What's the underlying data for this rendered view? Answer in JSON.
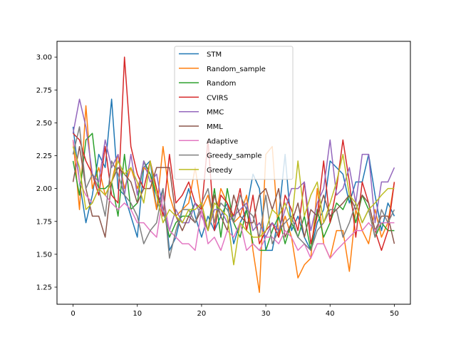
{
  "chart_data": {
    "type": "line",
    "title": "",
    "xlabel": "",
    "ylabel": "",
    "xlim": [
      -2.5,
      52.5
    ],
    "ylim": [
      1.12,
      3.12
    ],
    "xticks": [
      0,
      10,
      20,
      30,
      40,
      50
    ],
    "yticks": [
      1.25,
      1.5,
      1.75,
      2.0,
      2.25,
      2.5,
      2.75,
      3.0
    ],
    "ytick_labels": [
      "1.25",
      "1.50",
      "1.75",
      "2.00",
      "2.25",
      "2.50",
      "2.75",
      "3.00"
    ],
    "legend_position": "top-center",
    "grid": false,
    "x": [
      0,
      1,
      2,
      3,
      4,
      5,
      6,
      7,
      8,
      9,
      10,
      11,
      12,
      13,
      14,
      15,
      16,
      17,
      18,
      19,
      20,
      21,
      22,
      23,
      24,
      25,
      26,
      27,
      28,
      29,
      30,
      31,
      32,
      33,
      34,
      35,
      36,
      37,
      38,
      39,
      40,
      41,
      42,
      43,
      44,
      45,
      46,
      47,
      48,
      49,
      50
    ],
    "series": [
      {
        "name": "STM",
        "color": "#1f77b4",
        "values": [
          2.47,
          2.05,
          1.74,
          1.95,
          2.26,
          2.16,
          2.68,
          2.0,
          1.95,
          1.79,
          1.63,
          2.16,
          2.21,
          1.84,
          2.0,
          1.53,
          1.63,
          1.84,
          2.0,
          1.79,
          1.63,
          1.79,
          1.68,
          1.79,
          1.89,
          1.58,
          1.74,
          1.84,
          2.11,
          2.0,
          1.53,
          1.53,
          1.79,
          2.26,
          1.68,
          1.79,
          1.63,
          1.53,
          1.74,
          1.84,
          2.21,
          2.16,
          2.11,
          1.89,
          2.05,
          2.05,
          2.26,
          1.95,
          1.68,
          1.89,
          1.79
        ]
      },
      {
        "name": "Random_sample",
        "color": "#ff7f0e",
        "values": [
          2.37,
          1.84,
          2.63,
          2.0,
          2.16,
          1.95,
          2.05,
          2.26,
          2.0,
          2.16,
          2.0,
          2.16,
          2.11,
          1.84,
          2.32,
          1.95,
          1.79,
          1.84,
          1.89,
          2.16,
          1.84,
          1.95,
          1.74,
          2.0,
          1.89,
          1.74,
          1.79,
          1.95,
          1.53,
          1.21,
          2.26,
          2.32,
          1.63,
          1.79,
          1.63,
          1.32,
          1.42,
          1.47,
          2.0,
          1.58,
          1.47,
          1.68,
          1.68,
          1.37,
          1.84,
          1.68,
          1.58,
          1.84,
          1.63,
          1.74,
          2.05
        ]
      },
      {
        "name": "Random",
        "color": "#2ca02c",
        "values": [
          2.21,
          1.95,
          2.37,
          2.42,
          2.0,
          2.0,
          2.05,
          1.79,
          2.26,
          1.84,
          1.89,
          2.21,
          2.11,
          1.95,
          1.84,
          1.63,
          1.74,
          1.79,
          1.79,
          1.89,
          1.84,
          1.68,
          2.0,
          1.63,
          2.0,
          1.74,
          1.63,
          1.84,
          1.58,
          1.53,
          1.53,
          1.68,
          1.79,
          1.58,
          1.74,
          1.63,
          1.79,
          1.53,
          1.84,
          1.63,
          1.74,
          1.89,
          1.84,
          1.95,
          1.74,
          1.95,
          1.84,
          1.63,
          1.74,
          1.68,
          1.68
        ]
      },
      {
        "name": "CVIRS",
        "color": "#d62728",
        "values": [
          2.42,
          2.37,
          2.21,
          2.11,
          1.95,
          2.32,
          1.95,
          1.89,
          3.0,
          2.32,
          2.11,
          2.0,
          2.21,
          2.0,
          1.79,
          2.26,
          1.89,
          1.95,
          2.05,
          1.89,
          1.84,
          2.37,
          1.68,
          1.95,
          1.89,
          1.79,
          2.0,
          1.68,
          1.95,
          1.58,
          1.68,
          1.74,
          1.63,
          1.95,
          1.84,
          1.68,
          2.05,
          1.58,
          1.79,
          2.21,
          1.74,
          2.0,
          2.37,
          2.05,
          1.63,
          2.05,
          1.89,
          1.68,
          1.53,
          1.68,
          2.05
        ]
      },
      {
        "name": "MMC",
        "color": "#9467bd",
        "values": [
          2.42,
          2.68,
          2.47,
          2.11,
          2.05,
          2.37,
          2.16,
          2.26,
          1.95,
          2.26,
          1.95,
          2.21,
          2.05,
          2.11,
          1.84,
          1.68,
          1.84,
          1.74,
          1.74,
          1.89,
          1.79,
          1.68,
          1.84,
          1.84,
          1.74,
          1.79,
          1.84,
          1.89,
          1.68,
          1.74,
          1.63,
          1.74,
          1.68,
          1.84,
          2.0,
          2.0,
          2.05,
          1.68,
          1.89,
          2.0,
          2.37,
          1.95,
          2.0,
          2.16,
          1.89,
          2.26,
          2.26,
          1.74,
          2.05,
          2.05,
          2.16
        ]
      },
      {
        "name": "MML",
        "color": "#8c564b",
        "values": [
          2.05,
          2.32,
          2.0,
          1.79,
          1.79,
          1.63,
          2.05,
          2.16,
          2.11,
          2.05,
          1.89,
          2.0,
          2.0,
          2.16,
          2.16,
          2.16,
          1.79,
          1.68,
          1.79,
          1.74,
          1.84,
          1.68,
          1.95,
          1.79,
          1.68,
          1.95,
          1.79,
          1.74,
          1.74,
          1.95,
          2.0,
          1.84,
          2.0,
          1.63,
          1.74,
          1.89,
          1.63,
          1.84,
          1.79,
          1.95,
          1.79,
          1.84,
          1.89,
          1.95,
          1.84,
          1.95,
          1.89,
          1.68,
          1.79,
          1.79,
          1.58
        ]
      },
      {
        "name": "Adaptive",
        "color": "#e377c2",
        "values": [
          2.37,
          2.05,
          1.95,
          1.89,
          2.0,
          1.95,
          1.89,
          1.84,
          1.89,
          1.84,
          1.74,
          1.74,
          1.68,
          1.63,
          1.95,
          1.68,
          1.63,
          1.58,
          1.58,
          1.53,
          1.84,
          1.58,
          1.63,
          1.53,
          1.68,
          1.63,
          1.74,
          1.53,
          1.58,
          1.53,
          1.63,
          1.63,
          1.58,
          1.68,
          1.63,
          1.53,
          1.58,
          1.47,
          1.58,
          1.58,
          1.47,
          1.53,
          1.58,
          1.63,
          1.68,
          1.68,
          1.74,
          1.68,
          1.74,
          1.74,
          1.74
        ]
      },
      {
        "name": "Greedy_sample",
        "color": "#7f7f7f",
        "values": [
          2.26,
          2.47,
          2.0,
          2.11,
          2.0,
          1.79,
          2.21,
          2.11,
          1.95,
          1.89,
          1.79,
          1.58,
          1.68,
          1.74,
          2.0,
          1.47,
          1.68,
          1.84,
          1.84,
          1.74,
          1.89,
          2.0,
          1.74,
          1.89,
          1.84,
          1.74,
          1.95,
          1.84,
          1.79,
          1.63,
          1.95,
          1.58,
          1.68,
          1.74,
          1.79,
          1.63,
          1.58,
          1.53,
          1.68,
          1.74,
          1.84,
          1.84,
          1.63,
          1.74,
          1.89,
          1.74,
          1.84,
          1.63,
          1.84,
          1.74,
          1.84
        ]
      },
      {
        "name": "Greedy",
        "color": "#bcbd22",
        "values": [
          2.32,
          2.16,
          1.84,
          1.89,
          2.0,
          1.95,
          2.05,
          2.21,
          2.11,
          2.16,
          2.05,
          1.89,
          2.21,
          1.95,
          1.74,
          1.84,
          1.79,
          1.74,
          1.84,
          1.84,
          1.89,
          1.68,
          1.89,
          1.84,
          1.79,
          1.42,
          1.74,
          1.68,
          1.63,
          1.63,
          1.68,
          1.84,
          1.79,
          1.89,
          1.74,
          2.21,
          1.79,
          1.95,
          2.05,
          1.74,
          1.89,
          2.05,
          2.26,
          1.95,
          1.89,
          1.74,
          1.84,
          1.89,
          1.95,
          2.0,
          2.0
        ]
      }
    ]
  }
}
